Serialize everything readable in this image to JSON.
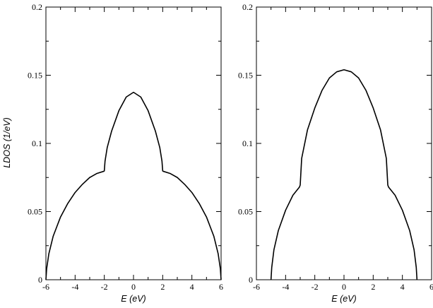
{
  "chart_data": [
    {
      "type": "line",
      "title": "",
      "xlabel": "E (eV)",
      "ylabel": "LDOS  (1/eV)",
      "xlim": [
        -6,
        6
      ],
      "ylim": [
        0,
        0.2
      ],
      "xticks": [
        -6,
        -4,
        -2,
        0,
        2,
        4,
        6
      ],
      "xtick_labels": [
        "-6",
        "-4",
        "-2",
        "0",
        "2",
        "4",
        "6"
      ],
      "yticks": [
        0,
        0.05,
        0.1,
        0.15,
        0.2
      ],
      "ytick_labels": [
        "0",
        "0.05",
        "0.1",
        "0.15",
        "0.2"
      ],
      "grid": false,
      "series": [
        {
          "x": [
            -6.0,
            -5.95,
            -5.8,
            -5.5,
            -5.0,
            -4.5,
            -4.0,
            -3.5,
            -3.0,
            -2.5,
            -2.05,
            -2.0,
            -1.95,
            -1.8,
            -1.5,
            -1.0,
            -0.5,
            0.0,
            0.5,
            1.0,
            1.5,
            1.8,
            1.95,
            2.0,
            2.05,
            2.5,
            3.0,
            3.5,
            4.0,
            4.5,
            5.0,
            5.5,
            5.8,
            5.95,
            6.0
          ],
          "y": [
            0.0,
            0.008,
            0.019,
            0.032,
            0.046,
            0.056,
            0.064,
            0.07,
            0.075,
            0.078,
            0.0795,
            0.0798,
            0.087,
            0.097,
            0.109,
            0.124,
            0.134,
            0.1375,
            0.134,
            0.124,
            0.109,
            0.097,
            0.087,
            0.0798,
            0.0795,
            0.078,
            0.075,
            0.07,
            0.064,
            0.056,
            0.046,
            0.032,
            0.019,
            0.008,
            0.0
          ]
        }
      ]
    },
    {
      "type": "line",
      "title": "",
      "xlabel": "E (eV)",
      "ylabel": "",
      "xlim": [
        -6,
        6
      ],
      "ylim": [
        0,
        0.2
      ],
      "xticks": [
        -6,
        -4,
        -2,
        0,
        2,
        4,
        6
      ],
      "xtick_labels": [
        "-6",
        "-4",
        "-2",
        "0",
        "2",
        "4",
        "6"
      ],
      "yticks": [
        0,
        0.05,
        0.1,
        0.15,
        0.2
      ],
      "ytick_labels": [
        "0",
        "0.05",
        "0.1",
        "0.15",
        "0.2"
      ],
      "grid": false,
      "series": [
        {
          "x": [
            -5.0,
            -4.95,
            -4.8,
            -4.5,
            -4.0,
            -3.5,
            -3.05,
            -3.0,
            -2.9,
            -2.5,
            -2.0,
            -1.5,
            -1.0,
            -0.5,
            0.0,
            0.5,
            1.0,
            1.5,
            2.0,
            2.5,
            2.9,
            3.0,
            3.05,
            3.5,
            4.0,
            4.5,
            4.8,
            4.95,
            5.0
          ],
          "y": [
            0.0,
            0.009,
            0.022,
            0.036,
            0.051,
            0.062,
            0.068,
            0.0695,
            0.089,
            0.11,
            0.126,
            0.139,
            0.148,
            0.1525,
            0.154,
            0.1525,
            0.148,
            0.139,
            0.126,
            0.11,
            0.089,
            0.0695,
            0.068,
            0.062,
            0.051,
            0.036,
            0.022,
            0.009,
            0.0
          ]
        }
      ]
    }
  ]
}
